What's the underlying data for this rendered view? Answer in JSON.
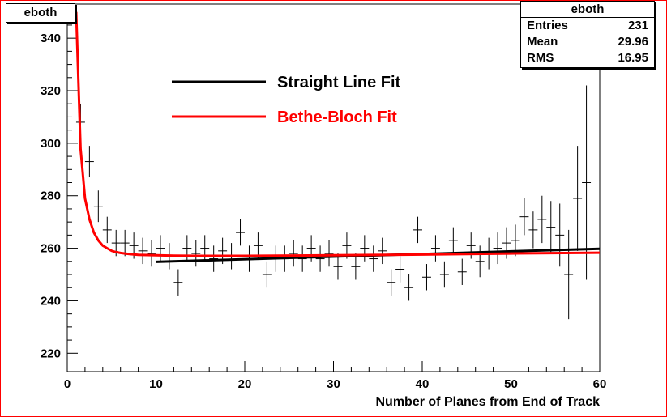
{
  "title": "eboth",
  "stats": {
    "name": "eboth",
    "entries_label": "Entries",
    "entries": "231",
    "mean_label": "Mean",
    "mean": "29.96",
    "rms_label": "RMS",
    "rms": "16.95"
  },
  "chart_data": {
    "type": "line",
    "xlabel": "Number of Planes from End of Track",
    "ylabel": "",
    "xlim": [
      0,
      60
    ],
    "ylim": [
      213,
      353
    ],
    "xticks": [
      0,
      10,
      20,
      30,
      40,
      50,
      60
    ],
    "yticks": [
      220,
      240,
      260,
      280,
      300,
      320,
      340
    ],
    "grid": false,
    "legend_position": "top-center",
    "data_points": {
      "x": [
        1.5,
        2.5,
        3.5,
        4.5,
        5.5,
        6.5,
        7.5,
        8.5,
        9.5,
        10.5,
        11.5,
        12.5,
        13.5,
        14.5,
        15.5,
        16.5,
        17.5,
        18.5,
        19.5,
        20.5,
        21.5,
        22.5,
        23.5,
        24.5,
        25.5,
        26.5,
        27.5,
        28.5,
        29.5,
        30.5,
        31.5,
        32.5,
        33.5,
        34.5,
        35.5,
        36.5,
        37.5,
        38.5,
        39.5,
        40.5,
        41.5,
        42.5,
        43.5,
        44.5,
        45.5,
        46.5,
        47.5,
        48.5,
        49.5,
        50.5,
        51.5,
        52.5,
        53.5,
        54.5,
        55.5,
        56.5,
        57.5,
        58.5
      ],
      "y": [
        308,
        293,
        276,
        267,
        262,
        262,
        261,
        259,
        258,
        260,
        257,
        247,
        260,
        258,
        260,
        256,
        259,
        257,
        266,
        256,
        261,
        250,
        256,
        256,
        258,
        256,
        260,
        256,
        258,
        253,
        261,
        253,
        260,
        256,
        259,
        247,
        252,
        245,
        267,
        249,
        260,
        250,
        263,
        251,
        261,
        255,
        258,
        260,
        262,
        263,
        272,
        267,
        271,
        268,
        265,
        250,
        279,
        285
      ],
      "err": [
        7,
        6,
        6,
        5,
        5,
        5,
        5,
        5,
        5,
        5,
        5,
        5,
        5,
        5,
        5,
        5,
        5,
        5,
        5,
        5,
        5,
        5,
        5,
        5,
        5,
        5,
        5,
        5,
        5,
        5,
        5,
        5,
        5,
        5,
        5,
        5,
        5,
        5,
        5,
        5,
        5,
        5,
        5,
        5,
        5,
        6,
        6,
        6,
        6,
        6,
        7,
        7,
        9,
        10,
        12,
        17,
        20,
        37
      ]
    },
    "series": [
      {
        "name": "Straight Line Fit",
        "color": "#000000",
        "x": [
          10,
          60
        ],
        "y": [
          254.8,
          259.8
        ]
      },
      {
        "name": "Bethe-Bloch Fit",
        "color": "#ff0000",
        "x": [
          1,
          1.5,
          2,
          2.5,
          3,
          3.5,
          4,
          4.5,
          5,
          5.5,
          6,
          6.5,
          7,
          8,
          9,
          10,
          12,
          15,
          20,
          30,
          40,
          50,
          60
        ],
        "y": [
          350,
          298,
          279,
          271,
          266,
          263,
          261,
          260,
          259,
          258.5,
          258.2,
          258,
          257.8,
          257.5,
          257.4,
          257.3,
          257.2,
          257.1,
          257.1,
          257.3,
          257.6,
          258,
          258.3
        ]
      }
    ]
  }
}
